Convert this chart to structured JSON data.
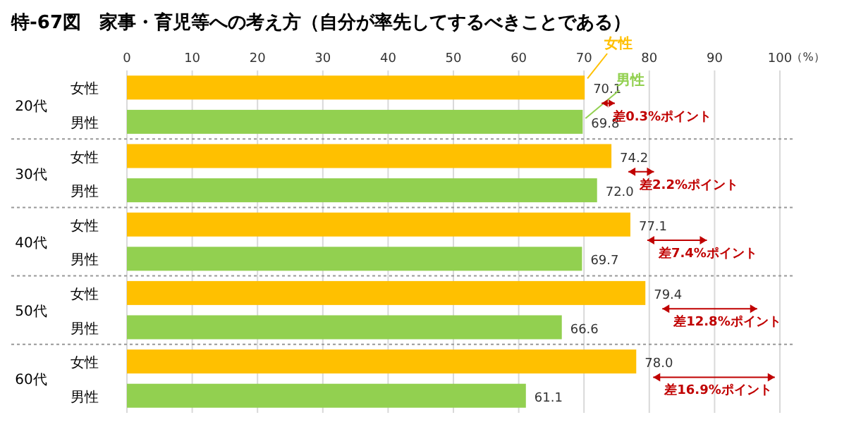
{
  "chart_data": {
    "type": "bar",
    "orientation": "horizontal",
    "title": "特-67図　家事・育児等への考え方（自分が率先してするべきことである）",
    "xlabel": "（%）",
    "categories": [
      "女性",
      "男性",
      "女性",
      "男性",
      "女性",
      "男性",
      "女性",
      "男性",
      "女性",
      "男性"
    ],
    "series": [
      {
        "name": "女性",
        "color": "#ffc000",
        "values": [
          70.1,
          null,
          74.2,
          null,
          77.1,
          null,
          79.4,
          null,
          78.0,
          null
        ],
        "value_labels": [
          "70.1",
          null,
          "74.2",
          null,
          "77.1",
          null,
          "79.4",
          null,
          "78.0",
          null
        ]
      },
      {
        "name": "男性",
        "color": "#92d050",
        "values": [
          null,
          69.8,
          null,
          72.0,
          null,
          69.7,
          null,
          66.6,
          null,
          61.1
        ],
        "value_labels": [
          null,
          "69.8",
          null,
          "72.0",
          null,
          "69.7",
          null,
          "66.6",
          null,
          "61.1"
        ]
      }
    ],
    "xlim": [
      0,
      100
    ],
    "xticks": [
      0,
      10,
      20,
      30,
      40,
      50,
      60,
      70,
      80,
      90,
      100
    ],
    "grid": "x",
    "data_labels": true,
    "annotations": [
      "20代",
      "30代",
      "40代",
      "50代",
      "60代",
      "差0.3%ポイント",
      "差2.2%ポイント",
      "差7.4%ポイント",
      "差12.8%ポイント",
      "差16.9%ポイント"
    ]
  }
}
